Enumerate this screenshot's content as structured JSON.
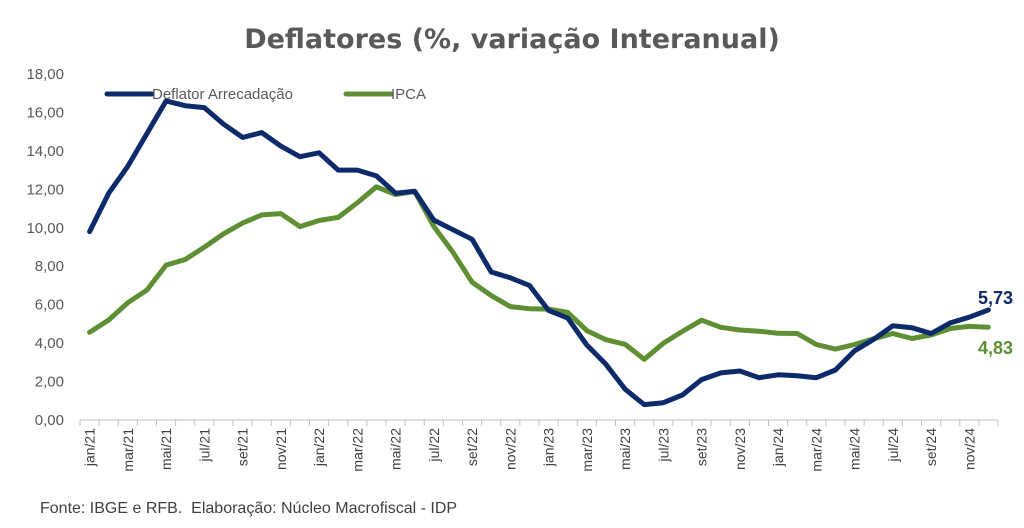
{
  "chart_data": {
    "type": "line",
    "title": "Deflatores (%, variação Interanual)",
    "ylim": [
      0,
      18
    ],
    "yticks": [
      "0,00",
      "2,00",
      "4,00",
      "6,00",
      "8,00",
      "10,00",
      "12,00",
      "14,00",
      "16,00",
      "18,00"
    ],
    "xtick_labels": [
      "jan/21",
      "mar/21",
      "mai/21",
      "jul/21",
      "set/21",
      "nov/21",
      "jan/22",
      "mar/22",
      "mai/22",
      "jul/22",
      "set/22",
      "nov/22",
      "jan/23",
      "mar/23",
      "mai/23",
      "jul/23",
      "set/23",
      "nov/23",
      "jan/24",
      "mar/24",
      "mai/24",
      "jul/24",
      "set/24",
      "nov/24"
    ],
    "categories": [
      "jan/21",
      "fev/21",
      "mar/21",
      "abr/21",
      "mai/21",
      "jun/21",
      "jul/21",
      "ago/21",
      "set/21",
      "out/21",
      "nov/21",
      "dez/21",
      "jan/22",
      "fev/22",
      "mar/22",
      "abr/22",
      "mai/22",
      "jun/22",
      "jul/22",
      "ago/22",
      "set/22",
      "out/22",
      "nov/22",
      "dez/22",
      "jan/23",
      "fev/23",
      "mar/23",
      "abr/23",
      "mai/23",
      "jun/23",
      "jul/23",
      "ago/23",
      "set/23",
      "out/23",
      "nov/23",
      "dez/23",
      "jan/24",
      "fev/24",
      "mar/24",
      "abr/24",
      "mai/24",
      "jun/24",
      "jul/24",
      "ago/24",
      "set/24",
      "out/24",
      "nov/24",
      "dez/24"
    ],
    "series": [
      {
        "name": "Deflator Arrecadação",
        "color": "#0d2a6b",
        "values": [
          9.8,
          11.8,
          13.2,
          14.9,
          16.6,
          16.35,
          16.25,
          15.4,
          14.7,
          14.95,
          14.25,
          13.7,
          13.9,
          13.0,
          13.0,
          12.7,
          11.8,
          11.9,
          10.4,
          9.9,
          9.4,
          7.7,
          7.4,
          7.0,
          5.7,
          5.3,
          3.9,
          2.9,
          1.6,
          0.8,
          0.9,
          1.3,
          2.1,
          2.45,
          2.55,
          2.2,
          2.35,
          2.3,
          2.2,
          2.6,
          3.6,
          4.2,
          4.9,
          4.8,
          4.5,
          5.05,
          5.35,
          5.73
        ],
        "end_label": "5,73"
      },
      {
        "name": "IPCA",
        "color": "#5f8f33",
        "values": [
          4.56,
          5.2,
          6.1,
          6.76,
          8.06,
          8.35,
          8.99,
          9.68,
          10.25,
          10.67,
          10.74,
          10.06,
          10.38,
          10.54,
          11.3,
          12.13,
          11.73,
          11.89,
          10.07,
          8.73,
          7.17,
          6.47,
          5.9,
          5.79,
          5.77,
          5.6,
          4.65,
          4.18,
          3.94,
          3.16,
          3.99,
          4.61,
          5.19,
          4.82,
          4.68,
          4.62,
          4.51,
          4.5,
          3.93,
          3.69,
          3.93,
          4.23,
          4.5,
          4.24,
          4.42,
          4.76,
          4.87,
          4.83
        ],
        "end_label": "4,83"
      }
    ],
    "legend_position": "top-left"
  },
  "footer": {
    "source": "Fonte: IBGE e RFB.  Elaboração: Núcleo Macrofiscal - IDP"
  }
}
